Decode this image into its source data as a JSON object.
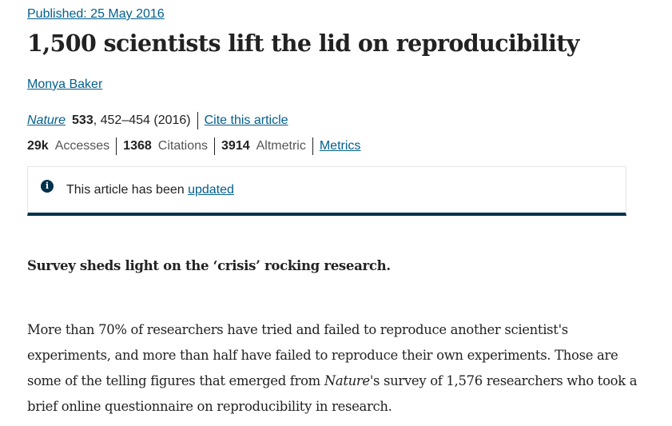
{
  "article": {
    "published": "Published: 25 May 2016",
    "title": "1,500 scientists lift the lid on reproducibility",
    "author": "Monya Baker",
    "citation": {
      "journal": "Nature",
      "volume": "533",
      "pages_year": ", 452–454 (2016)",
      "cite_link": "Cite this article"
    },
    "metrics": {
      "accesses_value": "29k",
      "accesses_label": "Accesses",
      "citations_value": "1368",
      "citations_label": "Citations",
      "altmetric_value": "3914",
      "altmetric_label": "Altmetric",
      "metrics_link": "Metrics"
    },
    "notice": {
      "icon": "info-icon",
      "text": "This article has been ",
      "link": "updated"
    },
    "standfirst": "Survey sheds light on the ‘crisis’ rocking research.",
    "body": {
      "line1": "More than 70% of researchers have tried and failed to reproduce another scientist's",
      "line2": "experiments, and more than half have failed to reproduce their own experiments. Those are",
      "line3_before": "some of the telling figures that emerged from ",
      "line3_em": "Nature",
      "line3_after": "'s survey of 1,576 researchers who took a",
      "line4": "brief online questionnaire on reproducibility in research."
    }
  },
  "colors": {
    "link": "#025e8d",
    "text": "#222222",
    "notice_border": "#01324b"
  }
}
